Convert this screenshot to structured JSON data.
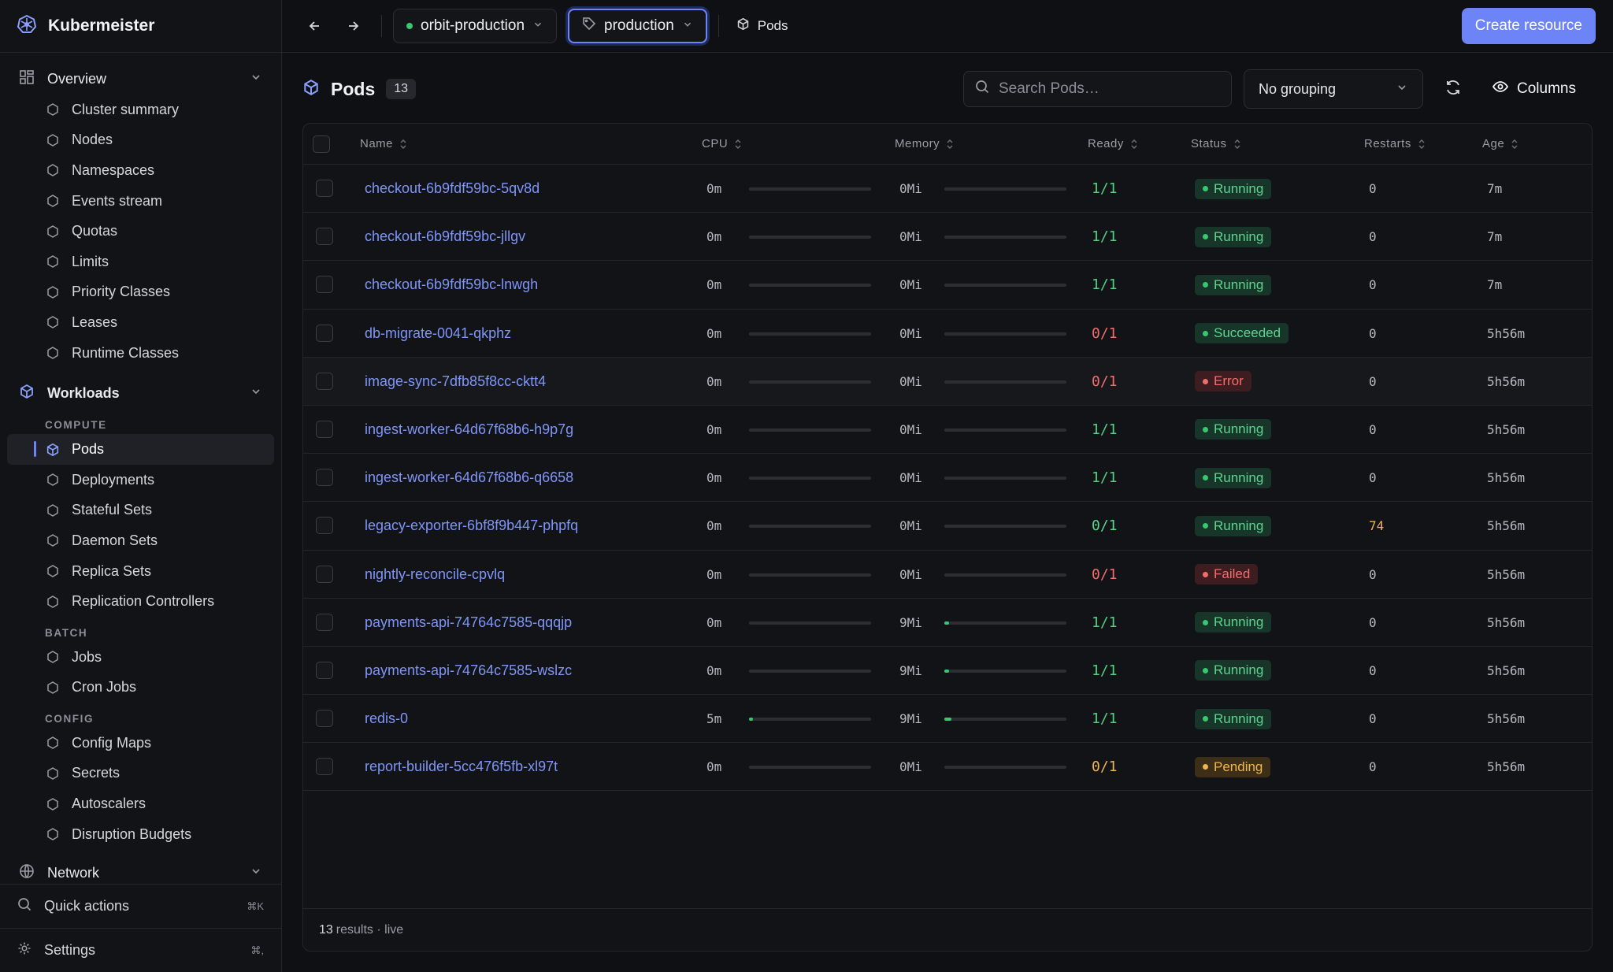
{
  "app": {
    "name": "Kubermeister"
  },
  "sidebar": {
    "overview": {
      "label": "Overview",
      "items": [
        {
          "label": "Cluster summary",
          "icon": "cube-stack-icon"
        },
        {
          "label": "Nodes",
          "icon": "server-icon"
        },
        {
          "label": "Namespaces",
          "icon": "boxes-icon"
        },
        {
          "label": "Events stream",
          "icon": "calendar-icon"
        },
        {
          "label": "Quotas",
          "icon": "layers-icon"
        },
        {
          "label": "Limits",
          "icon": "gauge-icon"
        },
        {
          "label": "Priority Classes",
          "icon": "priority-icon"
        },
        {
          "label": "Leases",
          "icon": "key-icon"
        },
        {
          "label": "Runtime Classes",
          "icon": "chip-icon"
        }
      ]
    },
    "workloads": {
      "label": "Workloads",
      "compute_label": "COMPUTE",
      "compute": [
        {
          "label": "Pods",
          "active": true
        },
        {
          "label": "Deployments"
        },
        {
          "label": "Stateful Sets"
        },
        {
          "label": "Daemon Sets"
        },
        {
          "label": "Replica Sets"
        },
        {
          "label": "Replication Controllers"
        }
      ],
      "batch_label": "BATCH",
      "batch": [
        {
          "label": "Jobs"
        },
        {
          "label": "Cron Jobs"
        }
      ],
      "config_label": "CONFIG",
      "config": [
        {
          "label": "Config Maps"
        },
        {
          "label": "Secrets"
        },
        {
          "label": "Autoscalers"
        },
        {
          "label": "Disruption Budgets"
        }
      ]
    },
    "network": {
      "label": "Network"
    },
    "quick_actions": {
      "label": "Quick actions",
      "shortcut": "⌘K"
    },
    "settings": {
      "label": "Settings",
      "shortcut": "⌘,"
    }
  },
  "topbar": {
    "cluster": "orbit-production",
    "namespace": "production",
    "breadcrumb": "Pods",
    "create_label": "Create resource"
  },
  "main": {
    "title": "Pods",
    "count": "13",
    "search_placeholder": "Search Pods…",
    "grouping": "No grouping",
    "columns_label": "Columns"
  },
  "table": {
    "headers": {
      "name": "Name",
      "cpu": "CPU",
      "memory": "Memory",
      "ready": "Ready",
      "status": "Status",
      "restarts": "Restarts",
      "age": "Age"
    },
    "rows": [
      {
        "name": "checkout-6b9fdf59bc-5qv8d",
        "cpu": "0m",
        "cpu_pct": 0,
        "mem": "0Mi",
        "mem_pct": 0,
        "ready": "1/1",
        "ready_kind": "ok",
        "status": "Running",
        "status_kind": "run",
        "restarts": "0",
        "age": "7m"
      },
      {
        "name": "checkout-6b9fdf59bc-jllgv",
        "cpu": "0m",
        "cpu_pct": 0,
        "mem": "0Mi",
        "mem_pct": 0,
        "ready": "1/1",
        "ready_kind": "ok",
        "status": "Running",
        "status_kind": "run",
        "restarts": "0",
        "age": "7m"
      },
      {
        "name": "checkout-6b9fdf59bc-lnwgh",
        "cpu": "0m",
        "cpu_pct": 0,
        "mem": "0Mi",
        "mem_pct": 0,
        "ready": "1/1",
        "ready_kind": "ok",
        "status": "Running",
        "status_kind": "run",
        "restarts": "0",
        "age": "7m"
      },
      {
        "name": "db-migrate-0041-qkphz",
        "cpu": "0m",
        "cpu_pct": 0,
        "mem": "0Mi",
        "mem_pct": 0,
        "ready": "0/1",
        "ready_kind": "bad",
        "status": "Succeeded",
        "status_kind": "suc",
        "restarts": "0",
        "age": "5h56m"
      },
      {
        "name": "image-sync-7dfb85f8cc-cktt4",
        "cpu": "0m",
        "cpu_pct": 0,
        "mem": "0Mi",
        "mem_pct": 0,
        "ready": "0/1",
        "ready_kind": "bad",
        "status": "Error",
        "status_kind": "err",
        "restarts": "0",
        "age": "5h56m",
        "highlight": true
      },
      {
        "name": "ingest-worker-64d67f68b6-h9p7g",
        "cpu": "0m",
        "cpu_pct": 0,
        "mem": "0Mi",
        "mem_pct": 0,
        "ready": "1/1",
        "ready_kind": "ok",
        "status": "Running",
        "status_kind": "run",
        "restarts": "0",
        "age": "5h56m"
      },
      {
        "name": "ingest-worker-64d67f68b6-q6658",
        "cpu": "0m",
        "cpu_pct": 0,
        "mem": "0Mi",
        "mem_pct": 0,
        "ready": "1/1",
        "ready_kind": "ok",
        "status": "Running",
        "status_kind": "run",
        "restarts": "0",
        "age": "5h56m"
      },
      {
        "name": "legacy-exporter-6bf8f9b447-phpfq",
        "cpu": "0m",
        "cpu_pct": 0,
        "mem": "0Mi",
        "mem_pct": 0,
        "ready": "0/1",
        "ready_kind": "warn",
        "status": "Running",
        "status_kind": "run",
        "restarts": "74",
        "restarts_hi": true,
        "age": "5h56m"
      },
      {
        "name": "nightly-reconcile-cpvlq",
        "cpu": "0m",
        "cpu_pct": 0,
        "mem": "0Mi",
        "mem_pct": 0,
        "ready": "0/1",
        "ready_kind": "bad",
        "status": "Failed",
        "status_kind": "err",
        "restarts": "0",
        "age": "5h56m"
      },
      {
        "name": "payments-api-74764c7585-qqqjp",
        "cpu": "0m",
        "cpu_pct": 0,
        "mem": "9Mi",
        "mem_pct": 4,
        "ready": "1/1",
        "ready_kind": "ok",
        "status": "Running",
        "status_kind": "run",
        "restarts": "0",
        "age": "5h56m"
      },
      {
        "name": "payments-api-74764c7585-wslzc",
        "cpu": "0m",
        "cpu_pct": 0,
        "mem": "9Mi",
        "mem_pct": 4,
        "ready": "1/1",
        "ready_kind": "ok",
        "status": "Running",
        "status_kind": "run",
        "restarts": "0",
        "age": "5h56m"
      },
      {
        "name": "redis-0",
        "cpu": "5m",
        "cpu_pct": 3,
        "mem": "9Mi",
        "mem_pct": 6,
        "ready": "1/1",
        "ready_kind": "ok",
        "status": "Running",
        "status_kind": "run",
        "restarts": "0",
        "age": "5h56m"
      },
      {
        "name": "report-builder-5cc476f5fb-xl97t",
        "cpu": "0m",
        "cpu_pct": 0,
        "mem": "0Mi",
        "mem_pct": 0,
        "ready": "0/1",
        "ready_kind": "pend",
        "status": "Pending",
        "status_kind": "pen",
        "restarts": "0",
        "age": "5h56m"
      }
    ],
    "footer": {
      "count": "13",
      "text": "results · live"
    }
  },
  "colors": {
    "accent": "#6d84f7",
    "success": "#37c871",
    "error": "#f26d6d",
    "warning": "#f0b54c"
  }
}
